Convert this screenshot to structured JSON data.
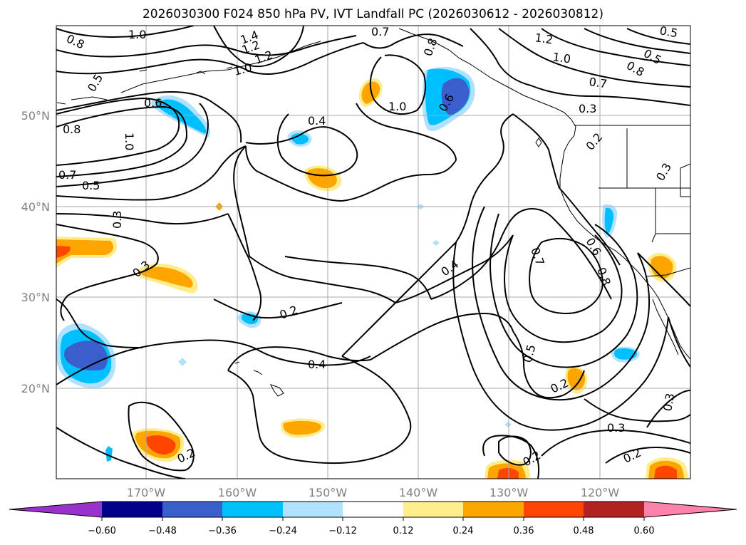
{
  "title": "2026030300 F024 850 hPa PV, IVT Landfall PC (2026030612 - 2026030812)",
  "map": {
    "region": "North Pacific",
    "longitude_ticks": [
      "170°W",
      "160°W",
      "150°W",
      "140°W",
      "130°W",
      "120°W"
    ],
    "latitude_ticks": [
      "50°N",
      "40°N",
      "30°N",
      "20°N"
    ],
    "gridlines": true,
    "land_color": "#ffffff",
    "coastline_color": "#000000"
  },
  "contour_labels": [
    "0.8",
    "1.0",
    "1.2",
    "1.4",
    "1.2",
    "1.0",
    "0.7",
    "0.8",
    "1.2",
    "1.0",
    "0.5",
    "0.5",
    "0.8",
    "0.7",
    "0.5",
    "0.6",
    "0.4",
    "1.0",
    "0.6",
    "0.3",
    "0.8",
    "1.0",
    "0.2",
    "0.7",
    "0.5",
    "0.3",
    "0.3",
    "0.4",
    "0.7",
    "0.6",
    "0.8",
    "0.3",
    "0.2",
    "0.4",
    "0.5",
    "0.2",
    "0.3",
    "0.3",
    "0.2",
    "0.2"
  ],
  "colorbar": {
    "ticks": [
      "−0.60",
      "−0.48",
      "−0.36",
      "−0.24",
      "−0.12",
      "0.12",
      "0.24",
      "0.36",
      "0.48",
      "0.60"
    ],
    "colors": [
      "#9932cc",
      "#00008b",
      "#3a5fcd",
      "#00bfff",
      "#b0e2ff",
      "#ffffff",
      "#ffec8b",
      "#ffa500",
      "#ff4500",
      "#b22222",
      "#ff82ab"
    ],
    "extend": "both"
  }
}
